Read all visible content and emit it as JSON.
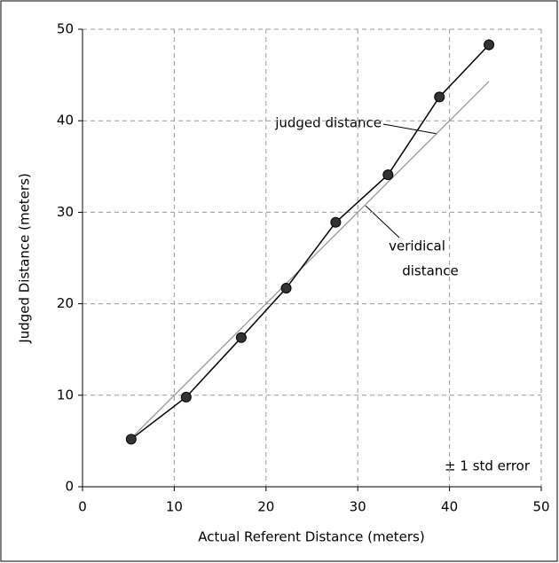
{
  "chart_data": {
    "type": "line",
    "xlabel": "Actual Referent Distance (meters)",
    "ylabel": "Judged Distance (meters)",
    "xlim": [
      0,
      50
    ],
    "xticks": [
      0,
      10,
      20,
      30,
      40,
      50
    ],
    "ylim": [
      0,
      50
    ],
    "yticks": [
      0,
      10,
      20,
      30,
      40,
      50
    ],
    "grid": true,
    "series": [
      {
        "color": "#000000",
        "markers": true,
        "x": [
          5.3,
          11.3,
          17.3,
          22.2,
          27.6,
          33.3,
          38.9,
          44.3
        ],
        "values": [
          5.2,
          9.8,
          16.3,
          21.7,
          28.9,
          34.1,
          42.6,
          48.3
        ],
        "errors": [
          0.2,
          0.2,
          0.2,
          0.2,
          0.2,
          0.2,
          0.5,
          0.6
        ]
      },
      {
        "color": "#999999",
        "markers": false,
        "x": [
          5.3,
          44.3
        ],
        "values": [
          5.3,
          44.3
        ]
      }
    ],
    "annotations": [
      "judged distance",
      "veridical",
      "distance",
      "± 1 std error"
    ]
  }
}
